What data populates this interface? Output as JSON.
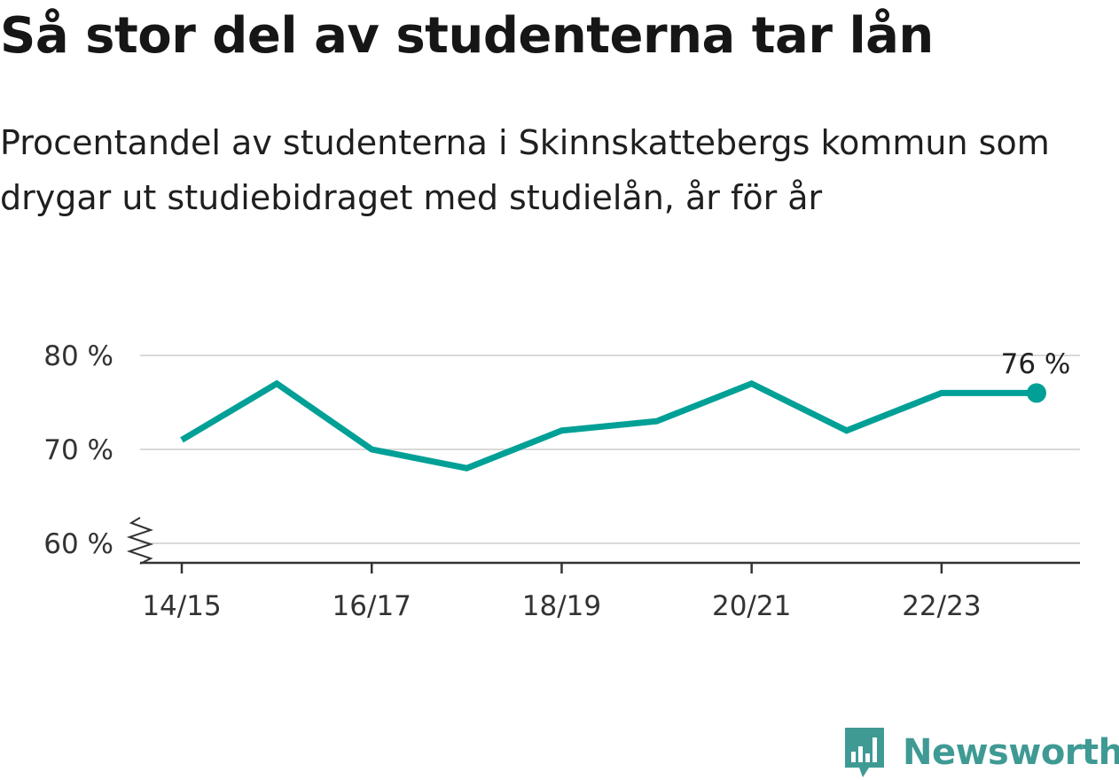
{
  "header": {
    "title": "Så stor del av studenterna tar lån",
    "subtitle": "Procentandel av studenterna i Skinnskattebergs kommun som drygar ut studiebidraget med studielån, år för år"
  },
  "brand": {
    "name": "Newsworthy",
    "color": "#3f9a94",
    "icon": "newsworthy-logo-icon"
  },
  "colors": {
    "line": "#00a096",
    "grid": "#d9d9d9",
    "axis": "#333333"
  },
  "chart_data": {
    "type": "line",
    "title": "Så stor del av studenterna tar lån",
    "xlabel": "",
    "ylabel": "",
    "x": [
      "14/15",
      "15/16",
      "16/17",
      "17/18",
      "18/19",
      "19/20",
      "20/21",
      "21/22",
      "22/23",
      "23/24"
    ],
    "x_tick_labels": [
      "14/15",
      "16/17",
      "18/19",
      "20/21",
      "22/23"
    ],
    "series": [
      {
        "values": [
          71,
          77,
          70,
          68,
          72,
          73,
          77,
          72,
          76,
          76
        ]
      }
    ],
    "y_ticks": [
      60,
      70,
      80
    ],
    "y_tick_labels": [
      "60 %",
      "70 %",
      "80 %"
    ],
    "ylim": [
      60,
      80
    ],
    "axis_break": true,
    "grid": true,
    "end_label": "76 %"
  }
}
